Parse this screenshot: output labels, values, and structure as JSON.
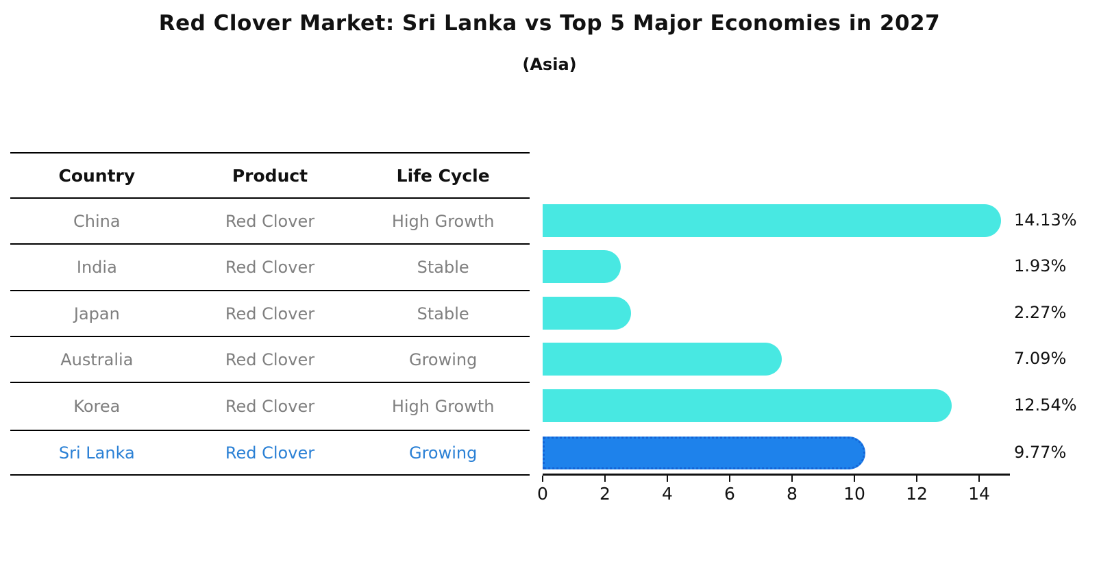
{
  "title": "Red Clover Market: Sri Lanka vs Top 5 Major Economies in 2027",
  "subtitle": "(Asia)",
  "table": {
    "headers": [
      "Country",
      "Product",
      "Life Cycle"
    ]
  },
  "chart_data": {
    "type": "bar",
    "orientation": "horizontal",
    "title": "Red Clover Market: Sri Lanka vs Top 5 Major Economies in 2027",
    "subtitle": "(Asia)",
    "xlabel": "",
    "ylabel": "",
    "xlim": [
      0,
      15
    ],
    "x_ticks": [
      "0",
      "2",
      "4",
      "6",
      "8",
      "10",
      "12",
      "14"
    ],
    "grid": false,
    "legend": "none",
    "rows": [
      {
        "country": "China",
        "product": "Red Clover",
        "life_cycle": "High Growth",
        "value": 14.13,
        "share_label": "14.13%",
        "highlight": false
      },
      {
        "country": "India",
        "product": "Red Clover",
        "life_cycle": "Stable",
        "value": 1.93,
        "share_label": "1.93%",
        "highlight": false
      },
      {
        "country": "Japan",
        "product": "Red Clover",
        "life_cycle": "Stable",
        "value": 2.27,
        "share_label": "2.27%",
        "highlight": false
      },
      {
        "country": "Australia",
        "product": "Red Clover",
        "life_cycle": "Growing",
        "value": 7.09,
        "share_label": "7.09%",
        "highlight": false
      },
      {
        "country": "Korea",
        "product": "Red Clover",
        "life_cycle": "High Growth",
        "value": 12.54,
        "share_label": "12.54%",
        "highlight": false
      },
      {
        "country": "Sri Lanka",
        "product": "Red Clover",
        "life_cycle": "Growing",
        "value": 9.77,
        "share_label": "9.77%",
        "highlight": true
      }
    ],
    "colors": {
      "bar": "#48e8e2",
      "highlight_bar": "#1e82eb",
      "highlight_border": "#1464d6",
      "highlight_text": "#2a80d5",
      "row_text": "#7f7f7f",
      "text": "#111111"
    }
  }
}
